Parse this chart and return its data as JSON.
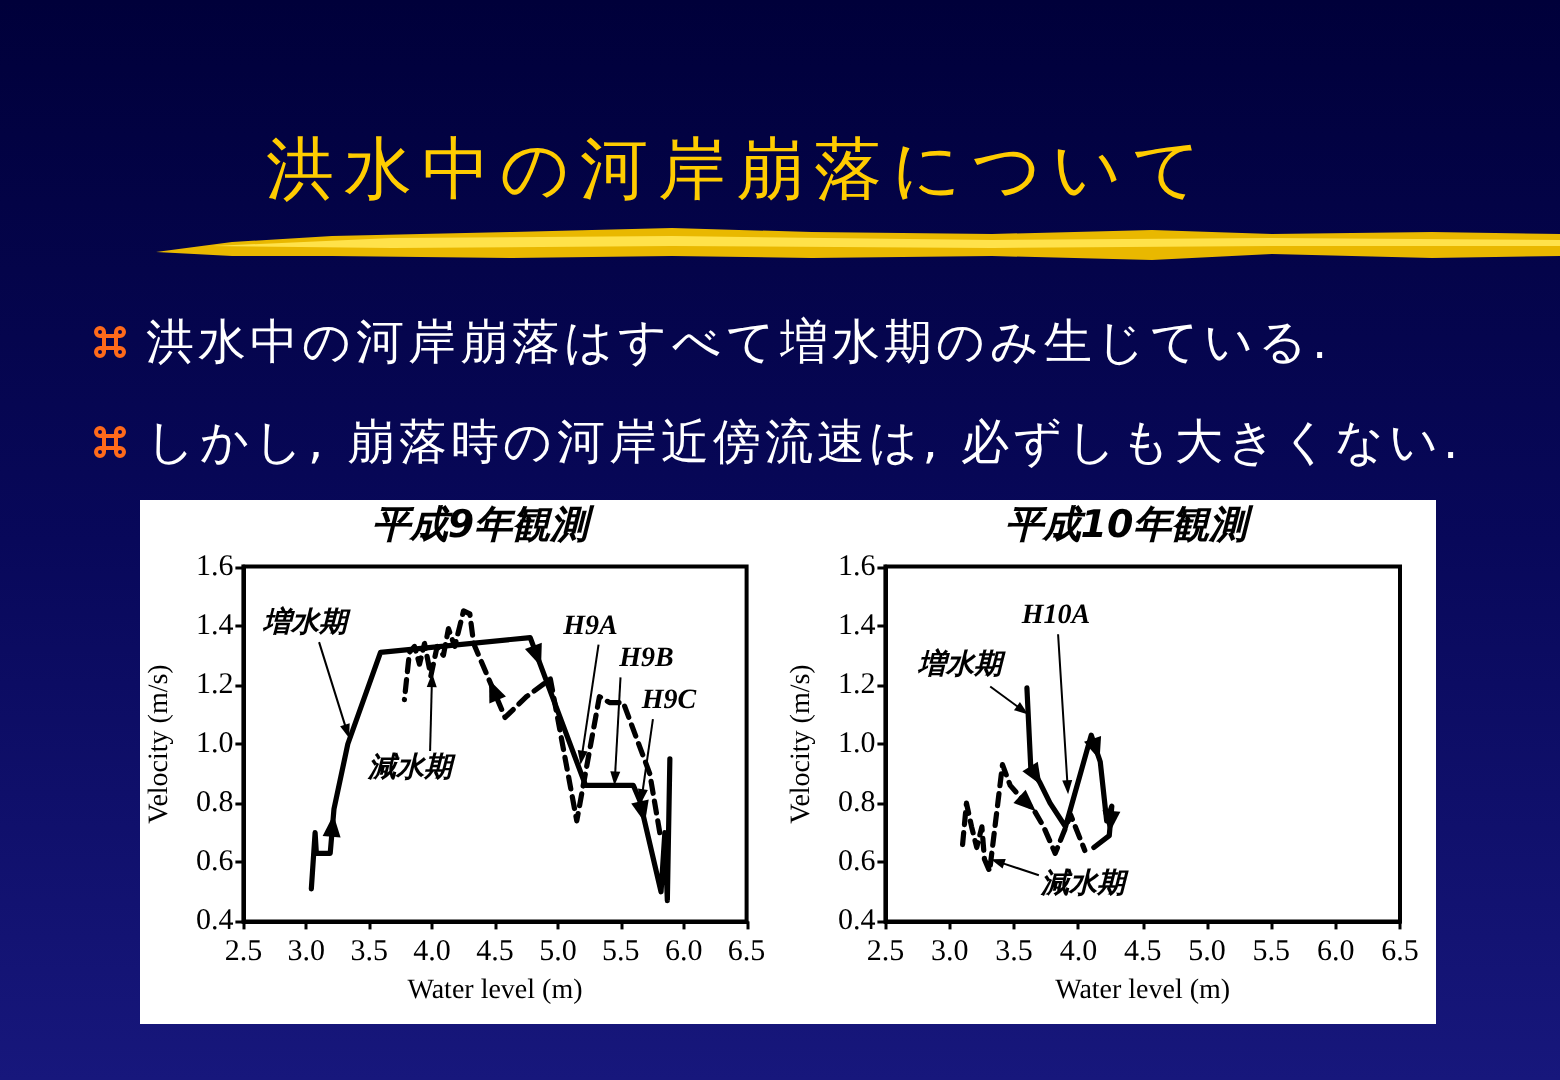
{
  "chart_data": [
    {
      "type": "other",
      "title": "洪水中の河岸崩落について",
      "annotations": [
        "洪水中の河岸崩落はすべて増水期のみ生じている.",
        "しかし, 崩落時の河岸近傍流速は, 必ずしも大きくない."
      ]
    },
    {
      "type": "line",
      "title": "平成9年観測",
      "xlabel": "Water level (m)",
      "ylabel": "Velocity (m/s)",
      "xlim": [
        2.5,
        6.5
      ],
      "xticks": [
        2.5,
        {
          "value": 3,
          "label": "3.0"
        },
        3.5,
        {
          "value": 4,
          "label": "4.0"
        },
        4.5,
        {
          "value": 5,
          "label": "5.0"
        },
        5.5,
        {
          "value": 6,
          "label": "6.0"
        },
        6.5
      ],
      "ylim": [
        0.4,
        1.6
      ],
      "yticks": [
        0.4,
        0.6,
        0.8,
        {
          "value": 1,
          "label": "1.0"
        },
        1.2,
        1.4,
        1.6
      ],
      "series": [
        {
          "color": "#000000",
          "line_style": "solid",
          "x": [
            3.04,
            3.07,
            3.08,
            3.19,
            3.22,
            3.33,
            3.59,
            4.78,
            5.22,
            5.6,
            5.65,
            5.82,
            5.85,
            5.87,
            5.89
          ],
          "values": [
            0.51,
            0.7,
            0.63,
            0.63,
            0.78,
            1.0,
            1.31,
            1.36,
            0.86,
            0.86,
            0.81,
            0.5,
            0.7,
            0.47,
            0.95
          ]
        },
        {
          "color": "#000000",
          "line_style": "dashed",
          "x": [
            5.81,
            5.73,
            5.52,
            5.41,
            5.33,
            5.15,
            4.94,
            4.75,
            4.58,
            4.43,
            4.33,
            4.3,
            4.25,
            4.18,
            4.13,
            4.09,
            4.04,
            3.99,
            3.94,
            3.9,
            3.86,
            3.82,
            3.78
          ],
          "values": [
            0.7,
            0.9,
            1.14,
            1.14,
            1.16,
            0.74,
            1.22,
            1.16,
            1.09,
            1.24,
            1.34,
            1.44,
            1.45,
            1.33,
            1.39,
            1.3,
            1.33,
            1.23,
            1.34,
            1.27,
            1.33,
            1.31,
            1.15
          ]
        }
      ],
      "annotations": [
        {
          "text": "増水期",
          "x": 3.34,
          "y": 1.02
        },
        {
          "text": "H9A",
          "x": 5.18,
          "y": 0.93
        },
        {
          "text": "H9B",
          "x": 5.45,
          "y": 0.86
        },
        {
          "text": "H9C",
          "x": 5.66,
          "y": 0.8
        },
        {
          "text": "減水期",
          "x": 4.0,
          "y": 1.24
        }
      ]
    },
    {
      "type": "line",
      "title": "平成10年観測",
      "xlabel": "Water level (m)",
      "ylabel": "Velocity (m/s)",
      "xlim": [
        2.5,
        6.5
      ],
      "xticks": [
        2.5,
        {
          "value": 3,
          "label": "3.0"
        },
        3.5,
        {
          "value": 4,
          "label": "4.0"
        },
        4.5,
        {
          "value": 5,
          "label": "5.0"
        },
        5.5,
        {
          "value": 6,
          "label": "6.0"
        },
        6.5
      ],
      "ylim": [
        0.4,
        1.6
      ],
      "yticks": [
        0.4,
        0.6,
        0.8,
        {
          "value": 1,
          "label": "1.0"
        },
        1.2,
        1.4,
        1.6
      ],
      "series": [
        {
          "color": "#000000",
          "line_style": "solid",
          "x": [
            3.6,
            3.63,
            3.7,
            3.78,
            3.9,
            4.1,
            4.17,
            4.22,
            4.26,
            4.24,
            4.12
          ],
          "values": [
            1.19,
            0.92,
            0.87,
            0.8,
            0.72,
            1.03,
            0.94,
            0.74,
            0.79,
            0.69,
            0.65
          ]
        },
        {
          "color": "#000000",
          "line_style": "dashed",
          "x": [
            3.1,
            3.13,
            3.17,
            3.21,
            3.25,
            3.27,
            3.31,
            3.41,
            3.47,
            3.55,
            3.65,
            3.73,
            3.82,
            3.94,
            4.05
          ],
          "values": [
            0.66,
            0.8,
            0.72,
            0.65,
            0.72,
            0.61,
            0.57,
            0.93,
            0.86,
            0.82,
            0.78,
            0.72,
            0.63,
            0.76,
            0.64
          ]
        }
      ],
      "annotations": [
        {
          "text": "H10A",
          "x": 3.92,
          "y": 0.83
        },
        {
          "text": "増水期",
          "x": 3.61,
          "y": 1.1
        },
        {
          "text": "減水期",
          "x": 3.32,
          "y": 0.61
        }
      ]
    }
  ]
}
